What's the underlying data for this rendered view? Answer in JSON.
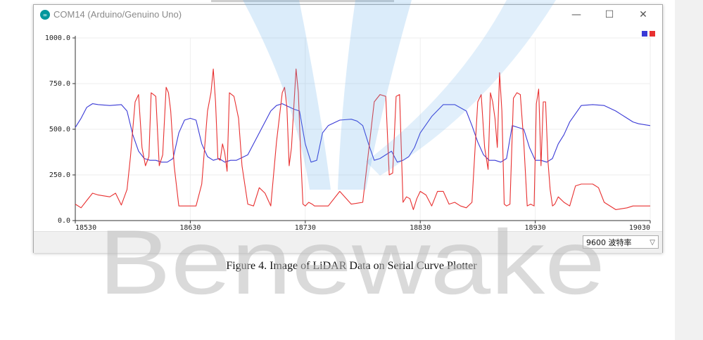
{
  "window": {
    "title": "COM14 (Arduino/Genuino Uno)",
    "controls": {
      "minimize": "—",
      "maximize": "☐",
      "close": "✕"
    }
  },
  "statusbar": {
    "baud_label": "9600  波特率"
  },
  "caption": "Figure 4. Image of LiDAR Data on Serial Curve Plotter",
  "watermark": {
    "text": "Benewake"
  },
  "colors": {
    "series1": "#3a3ad6",
    "series2": "#e83030",
    "watermark": "#bdbdbd",
    "watermark_logo": "#5aa8e8"
  },
  "chart_data": {
    "type": "line",
    "ylim": [
      0,
      1000
    ],
    "xlim": [
      18530,
      19030
    ],
    "y_ticks": [
      "0.0",
      "250.0",
      "500.0",
      "750.0",
      "1000.0"
    ],
    "x_ticks": [
      "18530",
      "18630",
      "18730",
      "18830",
      "18930",
      "19030"
    ],
    "legend_position": "top-right",
    "series": [
      {
        "color": "#3a3ad6",
        "x": [
          18530,
          18535,
          18540,
          18545,
          18550,
          18560,
          18570,
          18575,
          18580,
          18585,
          18590,
          18595,
          18600,
          18605,
          18610,
          18615,
          18620,
          18625,
          18630,
          18635,
          18640,
          18645,
          18650,
          18655,
          18660,
          18665,
          18670,
          18680,
          18690,
          18700,
          18705,
          18710,
          18715,
          18720,
          18725,
          18730,
          18735,
          18740,
          18745,
          18750,
          18760,
          18770,
          18775,
          18780,
          18785,
          18790,
          18795,
          18800,
          18805,
          18810,
          18815,
          18820,
          18825,
          18830,
          18840,
          18850,
          18860,
          18870,
          18875,
          18880,
          18885,
          18890,
          18895,
          18900,
          18905,
          18910,
          18915,
          18920,
          18925,
          18930,
          18935,
          18940,
          18945,
          18950,
          18955,
          18960,
          18970,
          18980,
          18990,
          19000,
          19005,
          19010,
          19015,
          19020,
          19030
        ],
        "y": [
          510,
          560,
          620,
          640,
          635,
          630,
          635,
          600,
          470,
          380,
          340,
          330,
          330,
          320,
          320,
          340,
          480,
          550,
          560,
          550,
          420,
          350,
          330,
          340,
          320,
          330,
          330,
          360,
          480,
          600,
          630,
          640,
          625,
          610,
          600,
          420,
          320,
          330,
          480,
          520,
          550,
          555,
          545,
          520,
          420,
          330,
          340,
          360,
          380,
          320,
          330,
          350,
          400,
          480,
          570,
          635,
          635,
          600,
          520,
          430,
          360,
          330,
          330,
          320,
          340,
          520,
          510,
          500,
          400,
          330,
          330,
          320,
          340,
          420,
          470,
          540,
          630,
          635,
          630,
          600,
          580,
          560,
          540,
          530,
          520
        ]
      },
      {
        "color": "#e83030",
        "x": [
          18530,
          18535,
          18540,
          18545,
          18550,
          18560,
          18565,
          18570,
          18575,
          18578,
          18582,
          18585,
          18588,
          18591,
          18594,
          18596,
          18598,
          18600,
          18603,
          18606,
          18609,
          18611,
          18613,
          18616,
          18620,
          18625,
          18630,
          18635,
          18640,
          18645,
          18648,
          18650,
          18652,
          18654,
          18656,
          18658,
          18660,
          18662,
          18664,
          18666,
          18668,
          18672,
          18675,
          18680,
          18685,
          18690,
          18695,
          18700,
          18705,
          18710,
          18712,
          18714,
          18716,
          18718,
          18720,
          18722,
          18724,
          18726,
          18728,
          18730,
          18733,
          18736,
          18738,
          18740,
          18745,
          18750,
          18760,
          18770,
          18780,
          18790,
          18795,
          18800,
          18803,
          18806,
          18809,
          18812,
          18815,
          18818,
          18821,
          18824,
          18827,
          18830,
          18835,
          18840,
          18845,
          18850,
          18855,
          18860,
          18865,
          18870,
          18875,
          18880,
          18883,
          18886,
          18889,
          18891,
          18893,
          18895,
          18897,
          18899,
          18901,
          18903,
          18905,
          18908,
          18911,
          18914,
          18917,
          18920,
          18923,
          18926,
          18929,
          18931,
          18933,
          18935,
          18937,
          18939,
          18941,
          18943,
          18945,
          18947,
          18950,
          18955,
          18960,
          18965,
          18970,
          18975,
          18980,
          18985,
          18990,
          19000,
          19010,
          19015,
          19020,
          19030
        ],
        "y": [
          90,
          70,
          110,
          150,
          140,
          130,
          150,
          85,
          170,
          350,
          650,
          690,
          400,
          300,
          350,
          700,
          690,
          680,
          300,
          360,
          730,
          700,
          600,
          300,
          80,
          80,
          80,
          80,
          200,
          600,
          700,
          830,
          650,
          340,
          330,
          420,
          370,
          270,
          700,
          690,
          680,
          560,
          300,
          90,
          80,
          180,
          150,
          80,
          430,
          700,
          730,
          620,
          300,
          400,
          620,
          830,
          700,
          360,
          90,
          80,
          100,
          90,
          80,
          80,
          80,
          80,
          160,
          90,
          100,
          650,
          690,
          680,
          250,
          260,
          680,
          690,
          100,
          130,
          120,
          60,
          120,
          160,
          140,
          80,
          160,
          160,
          90,
          100,
          80,
          70,
          100,
          650,
          690,
          400,
          280,
          700,
          650,
          560,
          400,
          810,
          600,
          90,
          80,
          90,
          670,
          700,
          690,
          430,
          80,
          90,
          80,
          640,
          720,
          300,
          650,
          650,
          330,
          170,
          80,
          90,
          130,
          100,
          80,
          190,
          200,
          200,
          200,
          180,
          100,
          60,
          70,
          80,
          80,
          80
        ]
      }
    ]
  }
}
